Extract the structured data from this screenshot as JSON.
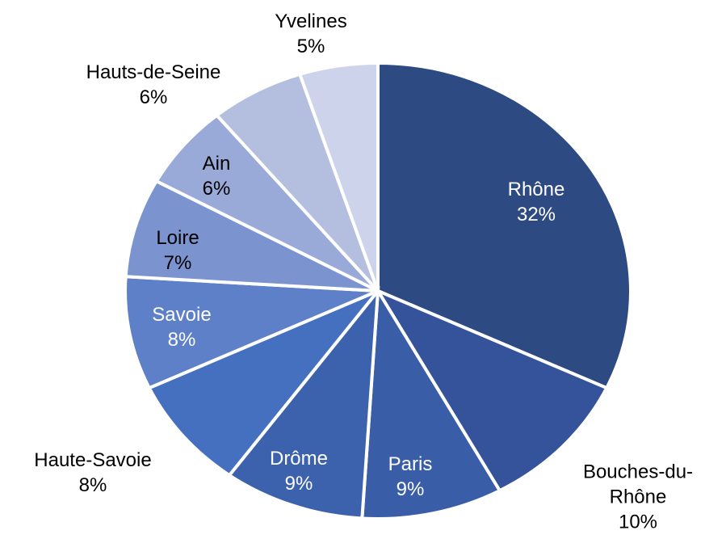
{
  "chart_data": {
    "type": "pie",
    "categories": [
      "Rhône",
      "Bouches-du-Rhône",
      "Paris",
      "Drôme",
      "Haute-Savoie",
      "Savoie",
      "Loire",
      "Ain",
      "Hauts-de-Seine",
      "Yvelines"
    ],
    "values": [
      32,
      10,
      9,
      9,
      8,
      8,
      7,
      6,
      6,
      5
    ],
    "value_labels": [
      "32%",
      "10%",
      "9%",
      "9%",
      "8%",
      "8%",
      "7%",
      "6%",
      "6%",
      "5%"
    ],
    "colors": [
      "#2e4a82",
      "#34539a",
      "#3a5da8",
      "#3d62ad",
      "#4470bf",
      "#5e80c8",
      "#7b93cf",
      "#9aaad8",
      "#b4bfe0",
      "#cdd3ea"
    ]
  }
}
